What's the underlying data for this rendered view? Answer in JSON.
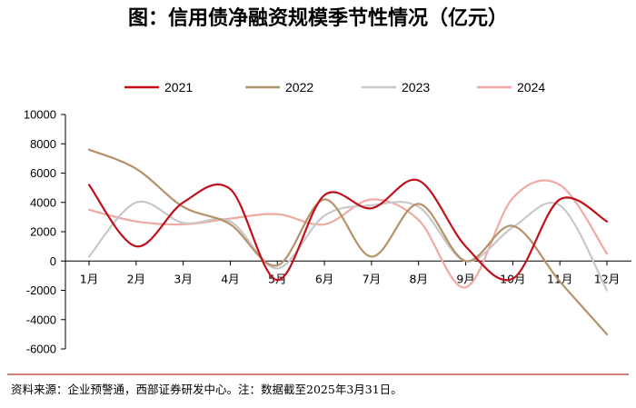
{
  "chart_data": {
    "type": "line",
    "title": "图：信用债净融资规模季节性情况（亿元）",
    "xlabel": "",
    "ylabel": "",
    "categories": [
      "1月",
      "2月",
      "3月",
      "4月",
      "5月",
      "6月",
      "7月",
      "8月",
      "9月",
      "10月",
      "11月",
      "12月"
    ],
    "ylim": [
      -6000,
      10000
    ],
    "yticks": [
      "10000",
      "8000",
      "6000",
      "4000",
      "2000",
      "0",
      "-2000",
      "-4000",
      "-6000"
    ],
    "legend_position": "top",
    "grid": false,
    "series": [
      {
        "name": "2021",
        "color": "#c0101c",
        "values": [
          5200,
          1000,
          4000,
          4900,
          -1300,
          4500,
          3600,
          5500,
          1000,
          -1200,
          4200,
          2700
        ]
      },
      {
        "name": "2022",
        "color": "#b5926a",
        "values": [
          7600,
          6300,
          3700,
          2500,
          -300,
          4200,
          300,
          3900,
          0,
          2400,
          -1400,
          -5000
        ]
      },
      {
        "name": "2023",
        "color": "#c8c8c8",
        "values": [
          300,
          4000,
          2600,
          2700,
          -500,
          3100,
          3800,
          3700,
          0,
          2300,
          3800,
          -2000
        ]
      },
      {
        "name": "2024",
        "color": "#f0aaa2",
        "values": [
          3500,
          2700,
          2500,
          2900,
          3200,
          2500,
          4200,
          2800,
          -1800,
          4300,
          5200,
          500
        ]
      }
    ]
  },
  "source_note": "资料来源：企业预警通，西部证券研发中心。注：数据截至2025年3月31日。"
}
